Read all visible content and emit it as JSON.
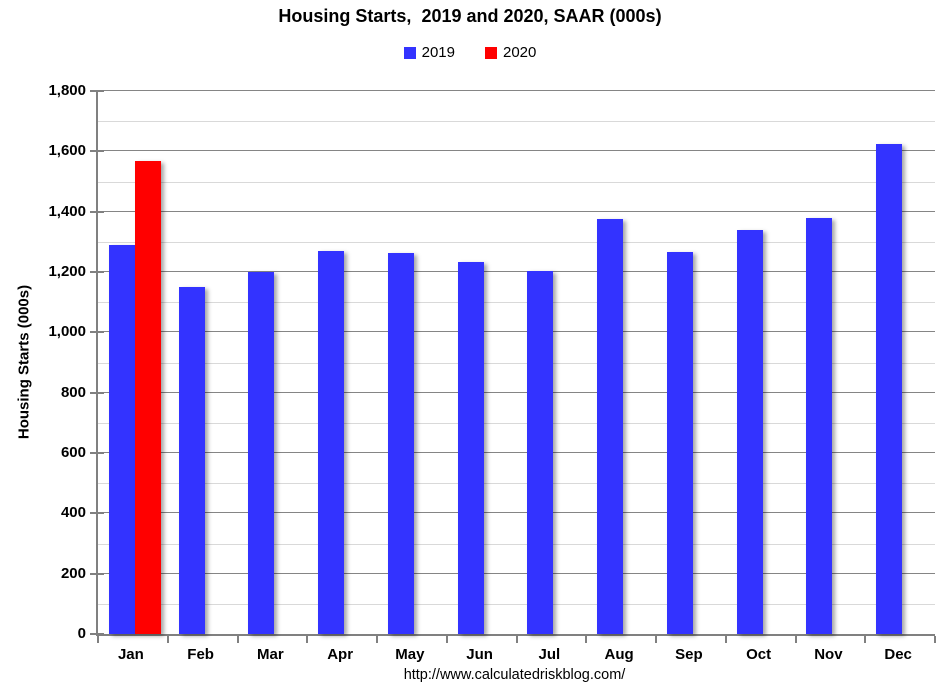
{
  "page": {
    "background": "#FFFFFF"
  },
  "chart_data": {
    "type": "bar",
    "title": "Housing Starts,  2019 and 2020, SAAR (000s)",
    "categories": [
      "Jan",
      "Feb",
      "Mar",
      "Apr",
      "May",
      "Jun",
      "Jul",
      "Aug",
      "Sep",
      "Oct",
      "Nov",
      "Dec"
    ],
    "series": [
      {
        "name": "2019",
        "color": "#3333FF",
        "values": [
          1291,
          1149,
          1199,
          1270,
          1264,
          1233,
          1204,
          1375,
          1266,
          1340,
          1380,
          1626
        ]
      },
      {
        "name": "2020",
        "color": "#FF0000",
        "values": [
          1567,
          null,
          null,
          null,
          null,
          null,
          null,
          null,
          null,
          null,
          null,
          null
        ]
      }
    ],
    "xlabel": "",
    "ylabel": "Housing Starts (000s)",
    "ylim": [
      0,
      1800
    ],
    "y_major_step": 200,
    "y_minor_step": 100,
    "y_tick_labels": [
      "0",
      "200",
      "400",
      "600",
      "800",
      "1,000",
      "1,200",
      "1,400",
      "1,600",
      "1,800"
    ],
    "grid": "major and minor horizontal gridlines",
    "legend_position": "top-center"
  },
  "colors": {
    "bar_2019": "#3333FF",
    "bar_2020": "#FF0000",
    "major_grid": "#858585",
    "minor_grid": "#D9D9D9",
    "axis": "#808080",
    "text": "#000000"
  },
  "footer": {
    "url": "http://www.calculatedriskblog.com/"
  }
}
